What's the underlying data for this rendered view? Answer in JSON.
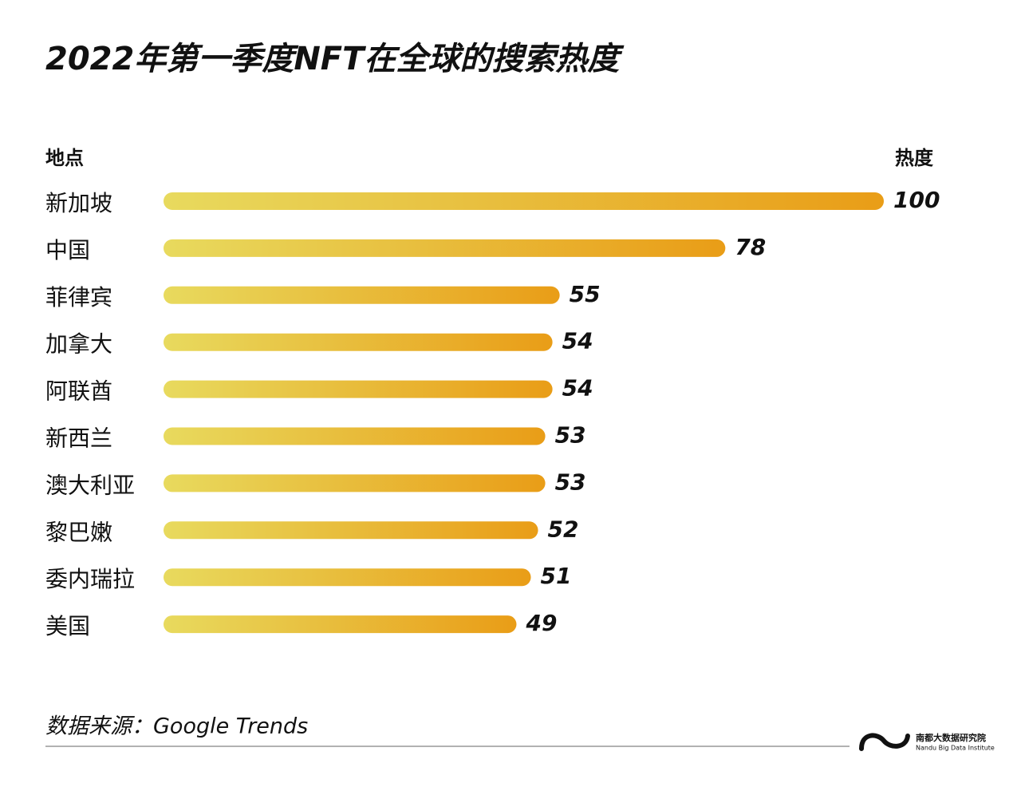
{
  "chart_data": {
    "type": "hbar",
    "title": "2022年第一季度NFT在全球的搜索热度",
    "category_label": "地点",
    "value_label": "热度",
    "categories": [
      "新加坡",
      "中国",
      "菲律宾",
      "加拿大",
      "阿联酋",
      "新西兰",
      "澳大利亚",
      "黎巴嫩",
      "委内瑞拉",
      "美国"
    ],
    "values": [
      100,
      78,
      55,
      54,
      54,
      53,
      53,
      52,
      51,
      49
    ],
    "xlim": [
      0,
      100
    ],
    "gradient": [
      "#e8da5e",
      "#e99d17"
    ],
    "source": "数据来源：Google Trends",
    "brand": "南都大数据研究院",
    "brand_en": "Nandu Big Data Institute"
  }
}
